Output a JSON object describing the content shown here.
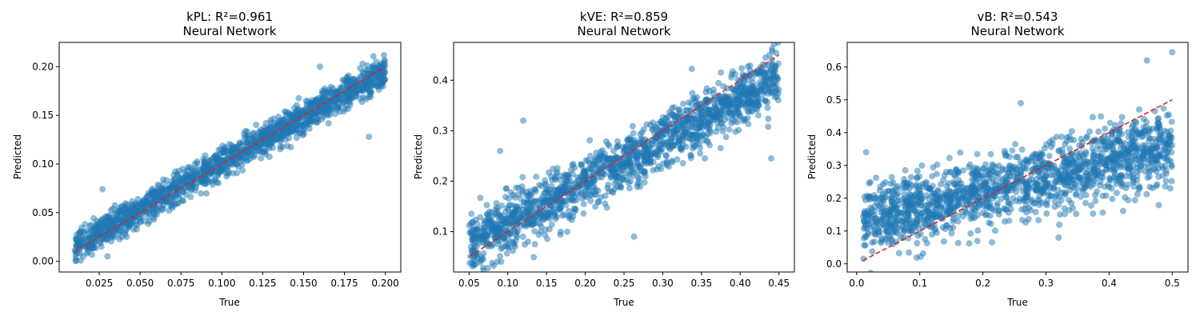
{
  "chart_data": [
    {
      "type": "scatter",
      "title": "kPL: R²=0.961",
      "subtitle": "Neural Network",
      "xlabel": "True",
      "ylabel": "Predicted",
      "xlim": [
        0.0005,
        0.2095
      ],
      "ylim": [
        -0.011,
        0.225
      ],
      "xticks": [
        0.025,
        0.05,
        0.075,
        0.1,
        0.125,
        0.15,
        0.175,
        0.2
      ],
      "xtick_labels": [
        "0.025",
        "0.050",
        "0.075",
        "0.100",
        "0.125",
        "0.150",
        "0.175",
        "0.200"
      ],
      "yticks": [
        0.0,
        0.05,
        0.1,
        0.15,
        0.2
      ],
      "ytick_labels": [
        "0.00",
        "0.05",
        "0.10",
        "0.15",
        "0.20"
      ],
      "trend": {
        "from": [
          0.01,
          0.01
        ],
        "to": [
          0.2,
          0.2
        ]
      },
      "spread": {
        "x_range": [
          0.01,
          0.2
        ],
        "slope": 0.95,
        "intercept": 0.0055,
        "sd": 0.008
      },
      "outliers": [
        [
          0.027,
          0.074
        ],
        [
          0.19,
          0.128
        ],
        [
          0.03,
          0.005
        ],
        [
          0.16,
          0.2
        ]
      ],
      "grid": false,
      "marker_color": "#1f77b4",
      "line_color": "#d62728"
    },
    {
      "type": "scatter",
      "title": "kVE: R²=0.859",
      "subtitle": "Neural Network",
      "xlabel": "True",
      "ylabel": "Predicted",
      "xlim": [
        0.03,
        0.47
      ],
      "ylim": [
        0.02,
        0.475
      ],
      "xticks": [
        0.05,
        0.1,
        0.15,
        0.2,
        0.25,
        0.3,
        0.35,
        0.4,
        0.45
      ],
      "xtick_labels": [
        "0.05",
        "0.10",
        "0.15",
        "0.20",
        "0.25",
        "0.30",
        "0.35",
        "0.40",
        "0.45"
      ],
      "yticks": [
        0.1,
        0.2,
        0.3,
        0.4
      ],
      "ytick_labels": [
        "0.1",
        "0.2",
        "0.3",
        "0.4"
      ],
      "trend": {
        "from": [
          0.05,
          0.05
        ],
        "to": [
          0.45,
          0.45
        ]
      },
      "spread": {
        "x_range": [
          0.05,
          0.45
        ],
        "slope": 0.82,
        "intercept": 0.035,
        "sd": 0.028
      },
      "outliers": [
        [
          0.263,
          0.09
        ],
        [
          0.09,
          0.26
        ],
        [
          0.44,
          0.245
        ],
        [
          0.12,
          0.32
        ]
      ],
      "grid": false,
      "marker_color": "#1f77b4",
      "line_color": "#d62728"
    },
    {
      "type": "scatter",
      "title": "vB: R²=0.543",
      "subtitle": "Neural Network",
      "xlabel": "True",
      "ylabel": "Predicted",
      "xlim": [
        -0.015,
        0.525
      ],
      "ylim": [
        -0.025,
        0.675
      ],
      "xticks": [
        0.0,
        0.1,
        0.2,
        0.3,
        0.4,
        0.5
      ],
      "xtick_labels": [
        "0.0",
        "0.1",
        "0.2",
        "0.3",
        "0.4",
        "0.5"
      ],
      "yticks": [
        0.0,
        0.1,
        0.2,
        0.3,
        0.4,
        0.5,
        0.6
      ],
      "ytick_labels": [
        "0.0",
        "0.1",
        "0.2",
        "0.3",
        "0.4",
        "0.5",
        "0.6"
      ],
      "trend": {
        "from": [
          0.01,
          0.01
        ],
        "to": [
          0.5,
          0.5
        ]
      },
      "spread": {
        "x_range": [
          0.01,
          0.5
        ],
        "slope": 0.45,
        "intercept": 0.13,
        "sd": 0.055
      },
      "outliers": [
        [
          0.5,
          0.645
        ],
        [
          0.46,
          0.62
        ],
        [
          0.015,
          0.34
        ],
        [
          0.32,
          0.08
        ],
        [
          0.26,
          0.49
        ]
      ],
      "grid": false,
      "marker_color": "#1f77b4",
      "line_color": "#d62728"
    }
  ]
}
